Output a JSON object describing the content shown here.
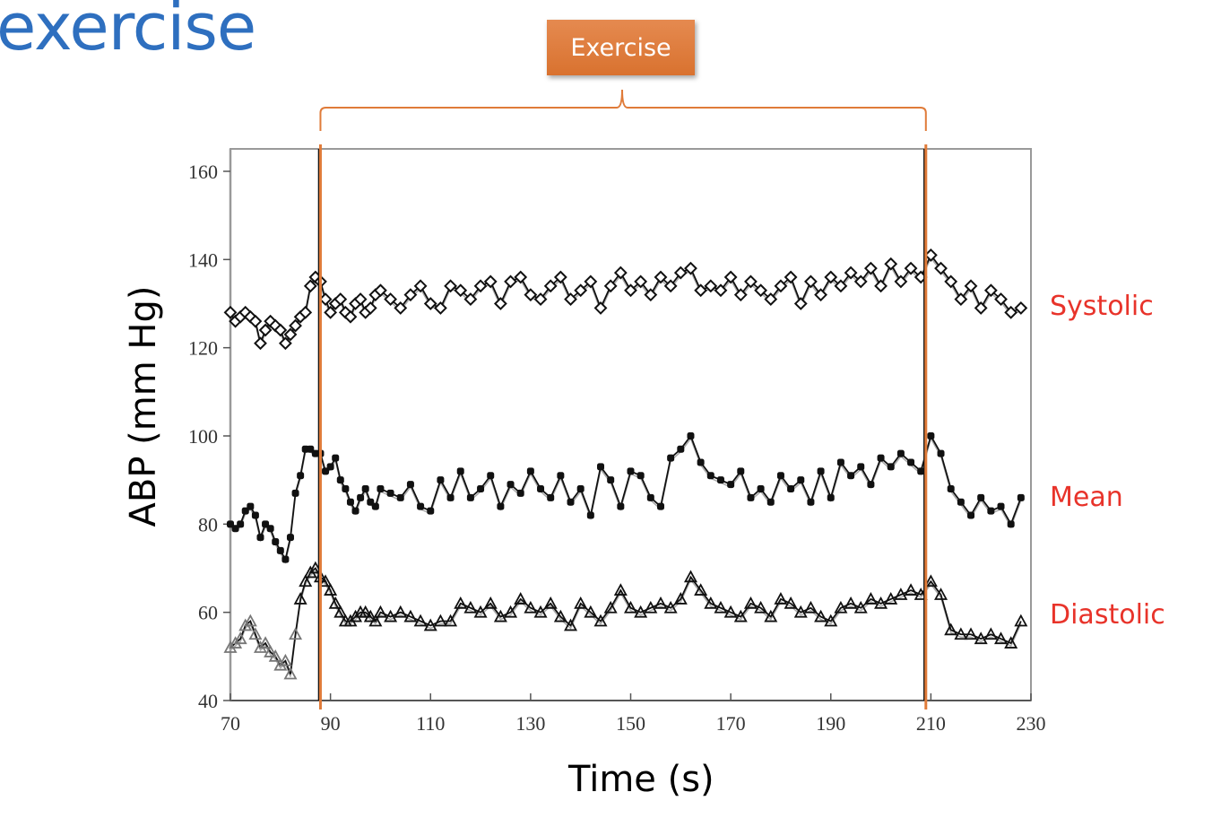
{
  "slide": {
    "title": "exercise",
    "annotation": "Exercise"
  },
  "chart_data": {
    "type": "line",
    "title": "",
    "xlabel": "Time (s)",
    "ylabel": "ABP (mm Hg)",
    "xlim": [
      70,
      230
    ],
    "ylim": [
      40,
      165
    ],
    "xticks": [
      70,
      90,
      110,
      130,
      150,
      170,
      190,
      210,
      230
    ],
    "yticks": [
      40,
      60,
      80,
      100,
      120,
      140,
      160
    ],
    "grid": false,
    "exercise_period": {
      "label": "Exercise",
      "start": 88,
      "end": 209,
      "color": "#e07b39"
    },
    "series_label_color": "#e8332a",
    "series": [
      {
        "name": "Systolic",
        "marker": "diamond",
        "x": [
          70,
          71,
          72,
          73,
          74,
          75,
          76,
          77,
          78,
          79,
          80,
          81,
          82,
          83,
          84,
          85,
          86,
          87,
          88,
          89,
          90,
          91,
          92,
          93,
          94,
          95,
          96,
          97,
          98,
          99,
          100,
          102,
          104,
          106,
          108,
          110,
          112,
          114,
          116,
          118,
          120,
          122,
          124,
          126,
          128,
          130,
          132,
          134,
          136,
          138,
          140,
          142,
          144,
          146,
          148,
          150,
          152,
          154,
          156,
          158,
          160,
          162,
          164,
          166,
          168,
          170,
          172,
          174,
          176,
          178,
          180,
          182,
          184,
          186,
          188,
          190,
          192,
          194,
          196,
          198,
          200,
          202,
          204,
          206,
          208,
          210,
          212,
          214,
          216,
          218,
          220,
          222,
          224,
          226,
          228
        ],
        "values": [
          128,
          126,
          127,
          128,
          127,
          126,
          121,
          124,
          126,
          125,
          124,
          121,
          123,
          125,
          127,
          128,
          134,
          136,
          135,
          131,
          128,
          130,
          131,
          128,
          127,
          130,
          131,
          128,
          129,
          132,
          133,
          131,
          129,
          132,
          134,
          130,
          129,
          134,
          133,
          131,
          134,
          135,
          130,
          135,
          136,
          132,
          131,
          134,
          136,
          131,
          133,
          135,
          129,
          134,
          137,
          133,
          135,
          132,
          136,
          134,
          137,
          138,
          133,
          134,
          133,
          136,
          132,
          135,
          133,
          131,
          134,
          136,
          130,
          135,
          132,
          136,
          134,
          137,
          135,
          138,
          134,
          139,
          135,
          138,
          136,
          141,
          138,
          135,
          131,
          134,
          129,
          133,
          131,
          128,
          129
        ]
      },
      {
        "name": "Mean",
        "marker": "filled-circle",
        "x": [
          70,
          71,
          72,
          73,
          74,
          75,
          76,
          77,
          78,
          79,
          80,
          81,
          82,
          83,
          84,
          85,
          86,
          87,
          88,
          89,
          90,
          91,
          92,
          93,
          94,
          95,
          96,
          97,
          98,
          99,
          100,
          102,
          104,
          106,
          108,
          110,
          112,
          114,
          116,
          118,
          120,
          122,
          124,
          126,
          128,
          130,
          132,
          134,
          136,
          138,
          140,
          142,
          144,
          146,
          148,
          150,
          152,
          154,
          156,
          158,
          160,
          162,
          164,
          166,
          168,
          170,
          172,
          174,
          176,
          178,
          180,
          182,
          184,
          186,
          188,
          190,
          192,
          194,
          196,
          198,
          200,
          202,
          204,
          206,
          208,
          210,
          212,
          214,
          216,
          218,
          220,
          222,
          224,
          226,
          228
        ],
        "values": [
          80,
          79,
          80,
          83,
          84,
          82,
          77,
          80,
          79,
          76,
          74,
          72,
          77,
          87,
          91,
          97,
          97,
          96,
          96,
          92,
          93,
          95,
          90,
          88,
          85,
          83,
          86,
          88,
          85,
          84,
          88,
          87,
          86,
          89,
          84,
          83,
          90,
          86,
          92,
          86,
          88,
          91,
          84,
          89,
          87,
          92,
          88,
          86,
          91,
          85,
          88,
          82,
          93,
          90,
          84,
          92,
          91,
          86,
          84,
          95,
          97,
          100,
          94,
          91,
          90,
          89,
          92,
          86,
          88,
          85,
          91,
          88,
          90,
          85,
          92,
          86,
          94,
          91,
          93,
          89,
          95,
          93,
          96,
          94,
          92,
          100,
          96,
          88,
          85,
          82,
          86,
          83,
          84,
          80,
          86
        ]
      },
      {
        "name": "Diastolic",
        "marker": "triangle",
        "x": [
          70,
          71,
          72,
          73,
          74,
          75,
          76,
          77,
          78,
          79,
          80,
          81,
          82,
          83,
          84,
          85,
          86,
          87,
          88,
          89,
          90,
          91,
          92,
          93,
          94,
          95,
          96,
          97,
          98,
          99,
          100,
          102,
          104,
          106,
          108,
          110,
          112,
          114,
          116,
          118,
          120,
          122,
          124,
          126,
          128,
          130,
          132,
          134,
          136,
          138,
          140,
          142,
          144,
          146,
          148,
          150,
          152,
          154,
          156,
          158,
          160,
          162,
          164,
          166,
          168,
          170,
          172,
          174,
          176,
          178,
          180,
          182,
          184,
          186,
          188,
          190,
          192,
          194,
          196,
          198,
          200,
          202,
          204,
          206,
          208,
          210,
          212,
          214,
          216,
          218,
          220,
          222,
          224,
          226,
          228
        ],
        "values": [
          52,
          53,
          54,
          57,
          58,
          55,
          52,
          53,
          51,
          50,
          48,
          49,
          46,
          55,
          63,
          67,
          69,
          70,
          68,
          67,
          65,
          62,
          60,
          58,
          58,
          59,
          60,
          60,
          59,
          58,
          60,
          59,
          60,
          59,
          58,
          57,
          58,
          58,
          62,
          61,
          60,
          62,
          59,
          60,
          63,
          61,
          60,
          62,
          59,
          57,
          62,
          60,
          58,
          61,
          65,
          61,
          60,
          61,
          62,
          61,
          63,
          68,
          65,
          62,
          61,
          60,
          59,
          62,
          61,
          59,
          63,
          62,
          60,
          61,
          59,
          58,
          61,
          62,
          61,
          63,
          62,
          63,
          64,
          65,
          64,
          67,
          64,
          56,
          55,
          55,
          54,
          55,
          54,
          53,
          58
        ]
      }
    ]
  }
}
